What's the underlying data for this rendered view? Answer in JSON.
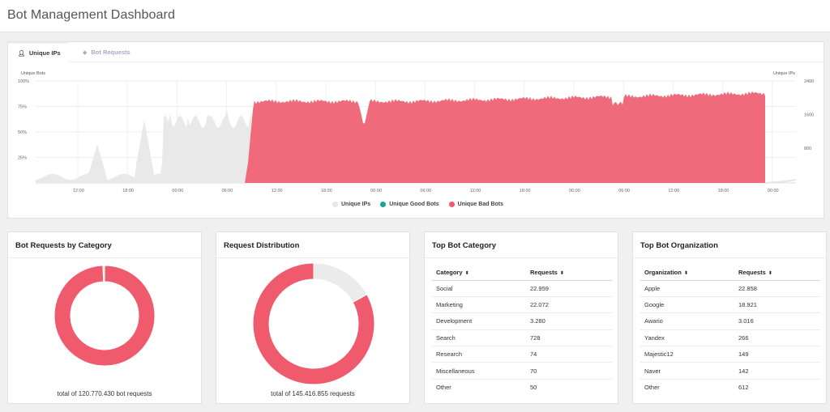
{
  "header": {
    "title": "Bot Management Dashboard"
  },
  "tabs": [
    {
      "label": "Unique IPs",
      "icon": "user-icon",
      "active": true
    },
    {
      "label": "Bot Requests",
      "icon": "bot-icon",
      "active": false
    }
  ],
  "timeline": {
    "left_axis_title": "Unique Bots",
    "right_axis_title": "Unique IPs",
    "left_ticks": [
      "100%",
      "75%",
      "50%",
      "25%"
    ],
    "right_ticks": [
      "2400",
      "1600",
      "800"
    ],
    "x_ticks": [
      "12:00",
      "18:00",
      "00:00",
      "06:00",
      "12:00",
      "18:00",
      "00:00",
      "06:00",
      "12:00",
      "18:00",
      "00:00",
      "06:00",
      "12:00",
      "18:00",
      "00:00"
    ],
    "legend": [
      {
        "label": "Unique IPs",
        "color": "#e6e6e6"
      },
      {
        "label": "Unique Good Bots",
        "color": "#1aa58c"
      },
      {
        "label": "Unique Bad Bots",
        "color": "#ee5b6f"
      }
    ],
    "colors": {
      "ips": "#e9e9e9",
      "bad": "#ef6b7c"
    }
  },
  "bot_requests_by_category": {
    "title": "Bot Requests by Category",
    "total_text": "total of 120.770.430 bot requests",
    "slices": [
      {
        "share": 0.995,
        "color": "#ef5a6d"
      },
      {
        "share": 0.005,
        "color": "#e8e8e8"
      }
    ]
  },
  "request_distribution": {
    "title": "Request Distribution",
    "total_text": "total of 145.416.855 requests",
    "slices": [
      {
        "share": 0.17,
        "color": "#ebebeb"
      },
      {
        "share": 0.83,
        "color": "#ef5a6d"
      }
    ]
  },
  "top_bot_category": {
    "title": "Top Bot Category",
    "columns": [
      "Category",
      "Requests"
    ],
    "rows": [
      [
        "Social",
        "22.959"
      ],
      [
        "Marketing",
        "22.072"
      ],
      [
        "Development",
        "3.280"
      ],
      [
        "Search",
        "728"
      ],
      [
        "Research",
        "74"
      ],
      [
        "Miscellaneous",
        "70"
      ],
      [
        "Other",
        "50"
      ]
    ]
  },
  "top_bot_organization": {
    "title": "Top Bot Organization",
    "columns": [
      "Organization",
      "Requests"
    ],
    "rows": [
      [
        "Apple",
        "22.858"
      ],
      [
        "Google",
        "18.921"
      ],
      [
        "Awario",
        "3.016"
      ],
      [
        "Yandex",
        "266"
      ],
      [
        "Majestic12",
        "149"
      ],
      [
        "Naver",
        "142"
      ],
      [
        "Other",
        "612"
      ]
    ]
  },
  "sort_glyph": "⬍"
}
